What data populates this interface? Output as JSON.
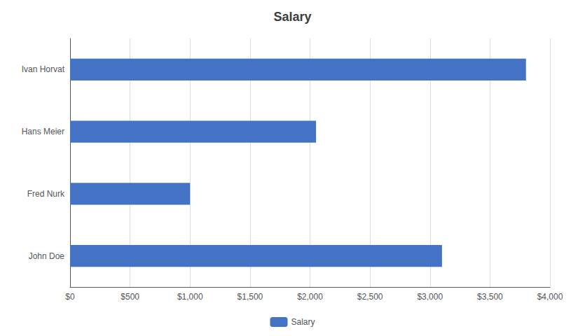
{
  "chart_data": {
    "type": "bar",
    "orientation": "horizontal",
    "title": "Salary",
    "categories": [
      "John Doe",
      "Fred Nurk",
      "Hans Meier",
      "Ivan Horvat"
    ],
    "series": [
      {
        "name": "Salary",
        "color": "#4472C4",
        "values": [
          3100,
          1000,
          2050,
          3800
        ]
      }
    ],
    "xlim": [
      0,
      4000
    ],
    "xticks": [
      {
        "value": 0,
        "label": "$0"
      },
      {
        "value": 500,
        "label": "$500"
      },
      {
        "value": 1000,
        "label": "$1,000"
      },
      {
        "value": 1500,
        "label": "$1,500"
      },
      {
        "value": 2000,
        "label": "$2,000"
      },
      {
        "value": 2500,
        "label": "$2,500"
      },
      {
        "value": 3000,
        "label": "$3,000"
      },
      {
        "value": 3500,
        "label": "$3,500"
      },
      {
        "value": 4000,
        "label": "$4,000"
      }
    ],
    "grid": true,
    "legend": "bottom"
  }
}
